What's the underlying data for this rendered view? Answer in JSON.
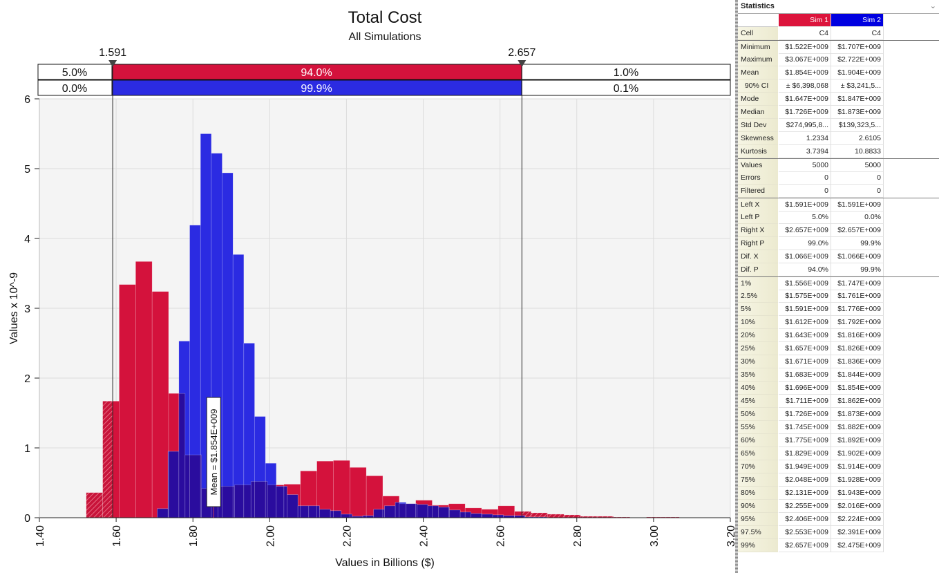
{
  "chart_data": {
    "type": "bar",
    "title": "Total Cost",
    "subtitle": "All Simulations",
    "xlabel": "Values in Billions ($)",
    "ylabel": "Values x 10^-9",
    "xlim": [
      1.4,
      3.2
    ],
    "ylim": [
      0,
      6
    ],
    "x_ticks": [
      "1.40",
      "1.60",
      "1.80",
      "2.00",
      "2.20",
      "2.40",
      "2.60",
      "2.80",
      "3.00",
      "3.20"
    ],
    "y_ticks": [
      "0",
      "1",
      "2",
      "3",
      "4",
      "5",
      "6"
    ],
    "grid": true,
    "delimiters": {
      "left": 1.591,
      "right": 2.657,
      "left_label": "1.591",
      "right_label": "2.657"
    },
    "probability_bars": [
      {
        "series": "Sim 1",
        "left": "5.0%",
        "middle": "94.0%",
        "right": "1.0%"
      },
      {
        "series": "Sim 2",
        "left": "0.0%",
        "middle": "99.9%",
        "right": "0.1%"
      }
    ],
    "mean_marker": {
      "value": 1.854,
      "label": "Mean = $1.854E+009"
    },
    "series": [
      {
        "name": "Sim 1",
        "color": "#d4123c",
        "bin_start": 1.522,
        "bin_width": 0.04292,
        "values": [
          0.36,
          1.67,
          3.34,
          3.67,
          3.24,
          1.78,
          0.9,
          0.42,
          0.45,
          0.47,
          0.52,
          0.47,
          0.48,
          0.67,
          0.81,
          0.82,
          0.72,
          0.6,
          0.31,
          0.2,
          0.25,
          0.18,
          0.2,
          0.14,
          0.12,
          0.17,
          0.09,
          0.07,
          0.05,
          0.04,
          0.02,
          0.02,
          0.01,
          0.0,
          0.01,
          0.01
        ]
      },
      {
        "name": "Sim 2",
        "color": "#2b2be2",
        "bin_start": 1.707,
        "bin_width": 0.02819,
        "values": [
          0.13,
          0.95,
          2.53,
          4.19,
          5.5,
          5.22,
          4.94,
          3.77,
          2.5,
          1.45,
          0.78,
          0.45,
          0.33,
          0.17,
          0.17,
          0.12,
          0.1,
          0.05,
          0.02,
          0.03,
          0.12,
          0.17,
          0.22,
          0.2,
          0.19,
          0.17,
          0.15,
          0.11,
          0.08,
          0.06,
          0.05,
          0.04,
          0.03,
          0.03,
          0.01,
          0.01
        ]
      }
    ],
    "overlap_color": "#2a0c9e"
  },
  "statistics": {
    "title": "Statistics",
    "columns": [
      "Sim 1",
      "Sim 2"
    ],
    "rows": [
      {
        "label": "Cell",
        "v": [
          "C4",
          "C4"
        ]
      },
      {
        "label": "Minimum",
        "v": [
          "$1.522E+009",
          "$1.707E+009"
        ],
        "sep": true
      },
      {
        "label": "Maximum",
        "v": [
          "$3.067E+009",
          "$2.722E+009"
        ]
      },
      {
        "label": "Mean",
        "v": [
          "$1.854E+009",
          "$1.904E+009"
        ]
      },
      {
        "label": "  90% CI",
        "v": [
          "± $6,398,068",
          "± $3,241,5..."
        ]
      },
      {
        "label": "Mode",
        "v": [
          "$1.647E+009",
          "$1.847E+009"
        ]
      },
      {
        "label": "Median",
        "v": [
          "$1.726E+009",
          "$1.873E+009"
        ]
      },
      {
        "label": "Std Dev",
        "v": [
          "$274,995,8...",
          "$139,323,5..."
        ]
      },
      {
        "label": "Skewness",
        "v": [
          "1.2334",
          "2.6105"
        ]
      },
      {
        "label": "Kurtosis",
        "v": [
          "3.7394",
          "10.8833"
        ]
      },
      {
        "label": "Values",
        "v": [
          "5000",
          "5000"
        ],
        "sep": true
      },
      {
        "label": "Errors",
        "v": [
          "0",
          "0"
        ]
      },
      {
        "label": "Filtered",
        "v": [
          "0",
          "0"
        ]
      },
      {
        "label": "Left X",
        "v": [
          "$1.591E+009",
          "$1.591E+009"
        ],
        "sep": true
      },
      {
        "label": "Left P",
        "v": [
          "5.0%",
          "0.0%"
        ]
      },
      {
        "label": "Right X",
        "v": [
          "$2.657E+009",
          "$2.657E+009"
        ]
      },
      {
        "label": "Right P",
        "v": [
          "99.0%",
          "99.9%"
        ]
      },
      {
        "label": "Dif. X",
        "v": [
          "$1.066E+009",
          "$1.066E+009"
        ]
      },
      {
        "label": "Dif. P",
        "v": [
          "94.0%",
          "99.9%"
        ]
      },
      {
        "label": "1%",
        "v": [
          "$1.556E+009",
          "$1.747E+009"
        ],
        "sep": true
      },
      {
        "label": "2.5%",
        "v": [
          "$1.575E+009",
          "$1.761E+009"
        ]
      },
      {
        "label": "5%",
        "v": [
          "$1.591E+009",
          "$1.776E+009"
        ]
      },
      {
        "label": "10%",
        "v": [
          "$1.612E+009",
          "$1.792E+009"
        ]
      },
      {
        "label": "20%",
        "v": [
          "$1.643E+009",
          "$1.816E+009"
        ]
      },
      {
        "label": "25%",
        "v": [
          "$1.657E+009",
          "$1.826E+009"
        ]
      },
      {
        "label": "30%",
        "v": [
          "$1.671E+009",
          "$1.836E+009"
        ]
      },
      {
        "label": "35%",
        "v": [
          "$1.683E+009",
          "$1.844E+009"
        ]
      },
      {
        "label": "40%",
        "v": [
          "$1.696E+009",
          "$1.854E+009"
        ]
      },
      {
        "label": "45%",
        "v": [
          "$1.711E+009",
          "$1.862E+009"
        ]
      },
      {
        "label": "50%",
        "v": [
          "$1.726E+009",
          "$1.873E+009"
        ]
      },
      {
        "label": "55%",
        "v": [
          "$1.745E+009",
          "$1.882E+009"
        ]
      },
      {
        "label": "60%",
        "v": [
          "$1.775E+009",
          "$1.892E+009"
        ]
      },
      {
        "label": "65%",
        "v": [
          "$1.829E+009",
          "$1.902E+009"
        ]
      },
      {
        "label": "70%",
        "v": [
          "$1.949E+009",
          "$1.914E+009"
        ]
      },
      {
        "label": "75%",
        "v": [
          "$2.048E+009",
          "$1.928E+009"
        ]
      },
      {
        "label": "80%",
        "v": [
          "$2.131E+009",
          "$1.943E+009"
        ]
      },
      {
        "label": "90%",
        "v": [
          "$2.255E+009",
          "$2.016E+009"
        ]
      },
      {
        "label": "95%",
        "v": [
          "$2.406E+009",
          "$2.224E+009"
        ]
      },
      {
        "label": "97.5%",
        "v": [
          "$2.553E+009",
          "$2.391E+009"
        ]
      },
      {
        "label": "99%",
        "v": [
          "$2.657E+009",
          "$2.475E+009"
        ]
      }
    ]
  }
}
